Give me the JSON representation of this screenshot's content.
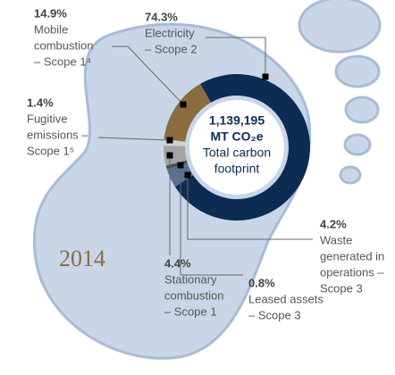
{
  "chart_data": {
    "type": "donut",
    "categories": [
      [
        "Electricity",
        "– Scope 2"
      ],
      [
        "Waste",
        "generated in",
        "operations –",
        "Scope 3"
      ],
      [
        "Leased assets",
        "– Scope 3"
      ],
      [
        "Stationary",
        "combustion",
        "– Scope 1"
      ],
      [
        "Fugitive",
        "emissions –",
        "Scope 1⁵"
      ],
      [
        "Mobile",
        "combustion",
        "– Scope 1⁴"
      ]
    ],
    "values": [
      74.3,
      4.2,
      0.8,
      4.4,
      1.4,
      14.9
    ],
    "value_labels": [
      "74.3%",
      "4.2%",
      "0.8%",
      "4.4%",
      "1.4%",
      "14.9%"
    ],
    "colors": [
      "#0d2c54",
      "#5b7093",
      "#4d4d4d",
      "#a3a3a3",
      "#cfcfcf",
      "#8b6c3e"
    ],
    "center_text": [
      "1,139,195",
      "MT CO₂e",
      "Total carbon",
      "footprint"
    ],
    "year": "2014"
  }
}
